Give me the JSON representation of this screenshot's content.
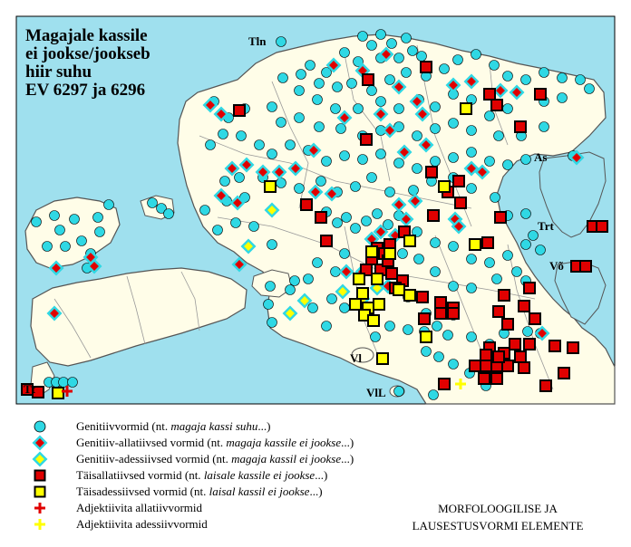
{
  "title": {
    "line1": "Magajale kassile",
    "line2": "ei jookse/jookseb",
    "line3": "hiir suhu",
    "line4": "EV 6297 ja 6296"
  },
  "places": {
    "tln": "Tln",
    "as": "As",
    "trt": "Trt",
    "vo": "Võ",
    "vl": "Vl",
    "vil": "VlL",
    "tt": "Tt"
  },
  "legend": [
    {
      "symbol": "circle",
      "prefix": "Genitiivvormid (nt. ",
      "example": "magaja kassi suhu",
      "suffix": "...)"
    },
    {
      "symbol": "diamond-red",
      "prefix": "Genitiiv-allatiivsed vormid (nt. ",
      "example": "magaja kassile ei jookse",
      "suffix": "...)"
    },
    {
      "symbol": "diamond-yellow",
      "prefix": "Genitiiv-adessiivsed vormid (nt. ",
      "example": "magaja kassil ei jookse",
      "suffix": "...)"
    },
    {
      "symbol": "square-red",
      "prefix": "Täisallatiivsed vormid (nt. ",
      "example": "laisale kassile ei jookse",
      "suffix": "...)"
    },
    {
      "symbol": "square-yellow",
      "prefix": "Täisadessiivsed vormid (nt. ",
      "example": "laisal kassil ei jookse",
      "suffix": "...)"
    },
    {
      "symbol": "cross-red",
      "prefix": "Adjektiivita allatiivvormid",
      "example": "",
      "suffix": ""
    },
    {
      "symbol": "cross-yellow",
      "prefix": "Adjektiivita adessiivvormid",
      "example": "",
      "suffix": ""
    }
  ],
  "note": {
    "line1": "MORFOLOOGILISE JA",
    "line2": "LAUSESTUSVORMI ELEMENTE"
  },
  "colors": {
    "sea": "#9fe0ee",
    "land": "#fffde8",
    "border": "#555555",
    "genitive": "#2fd8e4",
    "allative": "#e00000",
    "adessive": "#ffff00"
  },
  "icons": [
    "circle-icon",
    "diamond-icon",
    "square-icon",
    "cross-icon"
  ]
}
